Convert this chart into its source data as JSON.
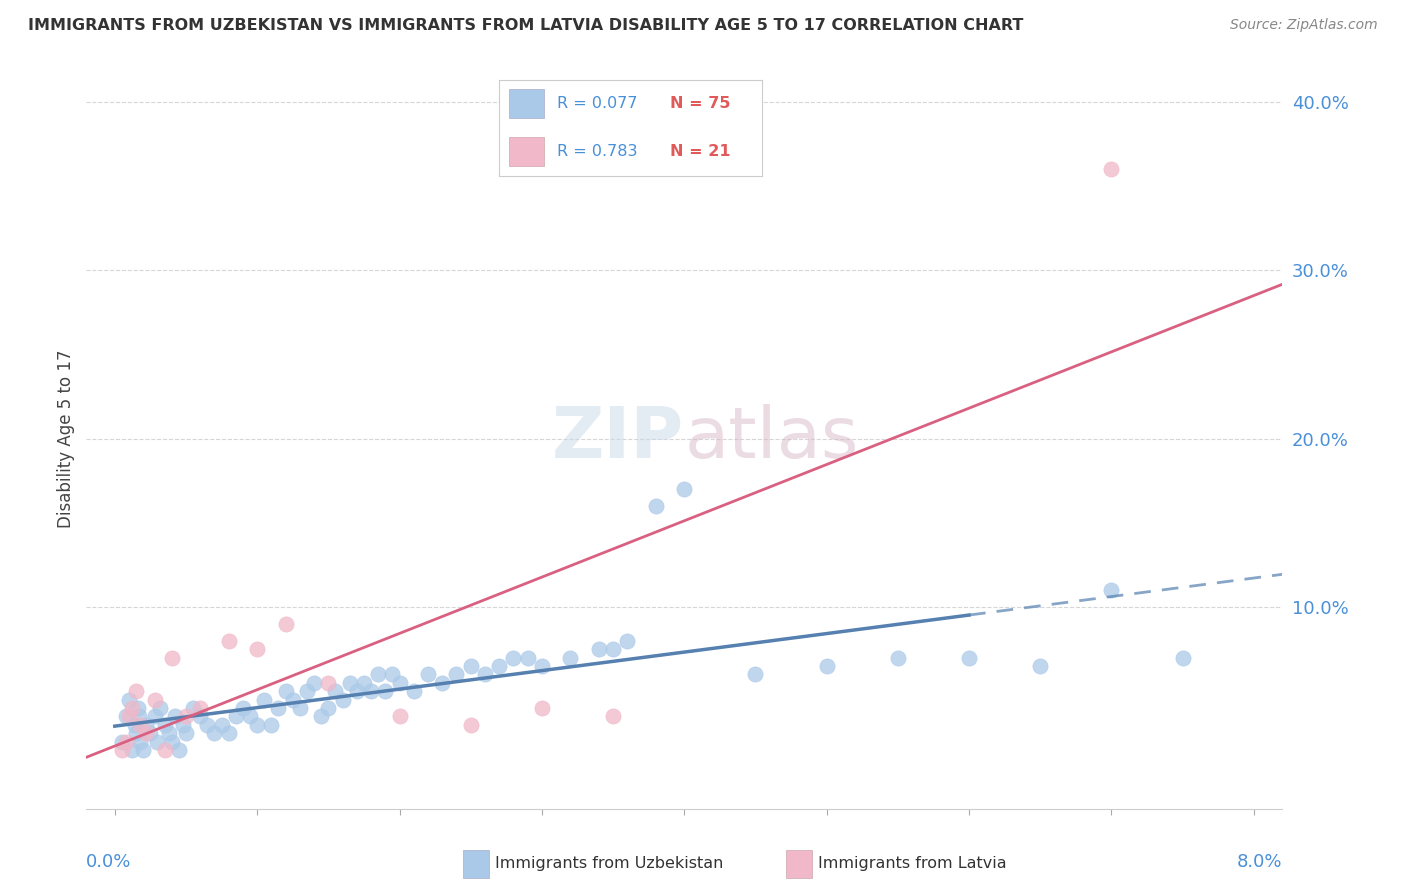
{
  "title": "IMMIGRANTS FROM UZBEKISTAN VS IMMIGRANTS FROM LATVIA DISABILITY AGE 5 TO 17 CORRELATION CHART",
  "source": "Source: ZipAtlas.com",
  "ylabel": "Disability Age 5 to 17",
  "x_min": 0.0,
  "x_max": 8.0,
  "y_min": -2.0,
  "y_max": 42.0,
  "uzbekistan_color": "#aac9e8",
  "uzbekistan_line_color": "#5580b0",
  "latvia_color": "#f0b8c8",
  "latvia_line_color": "#d96080",
  "legend_R_color": "#4a90d9",
  "legend_N_color": "#e05a5a",
  "background_color": "#ffffff",
  "uzbekistan_R": 0.077,
  "uzbekistan_N": 75,
  "latvia_R": 0.783,
  "latvia_N": 21,
  "uzbekistan_x": [
    0.05,
    0.08,
    0.1,
    0.12,
    0.14,
    0.15,
    0.16,
    0.17,
    0.18,
    0.2,
    0.22,
    0.25,
    0.28,
    0.3,
    0.32,
    0.35,
    0.38,
    0.4,
    0.42,
    0.45,
    0.48,
    0.5,
    0.55,
    0.6,
    0.65,
    0.7,
    0.75,
    0.8,
    0.85,
    0.9,
    0.95,
    1.0,
    1.05,
    1.1,
    1.15,
    1.2,
    1.25,
    1.3,
    1.35,
    1.4,
    1.45,
    1.5,
    1.55,
    1.6,
    1.65,
    1.7,
    1.75,
    1.8,
    1.85,
    1.9,
    1.95,
    2.0,
    2.1,
    2.2,
    2.3,
    2.4,
    2.5,
    2.6,
    2.7,
    2.8,
    2.9,
    3.0,
    3.2,
    3.4,
    3.5,
    3.6,
    3.8,
    4.0,
    4.5,
    5.0,
    5.5,
    6.0,
    6.5,
    7.0,
    7.5
  ],
  "uzbekistan_y": [
    2.0,
    3.5,
    4.5,
    1.5,
    3.0,
    2.5,
    4.0,
    3.5,
    2.0,
    1.5,
    3.0,
    2.5,
    3.5,
    2.0,
    4.0,
    3.0,
    2.5,
    2.0,
    3.5,
    1.5,
    3.0,
    2.5,
    4.0,
    3.5,
    3.0,
    2.5,
    3.0,
    2.5,
    3.5,
    4.0,
    3.5,
    3.0,
    4.5,
    3.0,
    4.0,
    5.0,
    4.5,
    4.0,
    5.0,
    5.5,
    3.5,
    4.0,
    5.0,
    4.5,
    5.5,
    5.0,
    5.5,
    5.0,
    6.0,
    5.0,
    6.0,
    5.5,
    5.0,
    6.0,
    5.5,
    6.0,
    6.5,
    6.0,
    6.5,
    7.0,
    7.0,
    6.5,
    7.0,
    7.5,
    7.5,
    8.0,
    16.0,
    17.0,
    6.0,
    6.5,
    7.0,
    7.0,
    6.5,
    11.0,
    7.0
  ],
  "latvia_x": [
    0.05,
    0.08,
    0.1,
    0.12,
    0.15,
    0.18,
    0.22,
    0.28,
    0.35,
    0.4,
    0.5,
    0.6,
    0.8,
    1.0,
    1.2,
    1.5,
    2.0,
    2.5,
    3.0,
    3.5,
    7.0
  ],
  "latvia_y": [
    1.5,
    2.0,
    3.5,
    4.0,
    5.0,
    3.0,
    2.5,
    4.5,
    1.5,
    7.0,
    3.5,
    4.0,
    8.0,
    7.5,
    9.0,
    5.5,
    3.5,
    3.0,
    4.0,
    3.5,
    36.0
  ]
}
